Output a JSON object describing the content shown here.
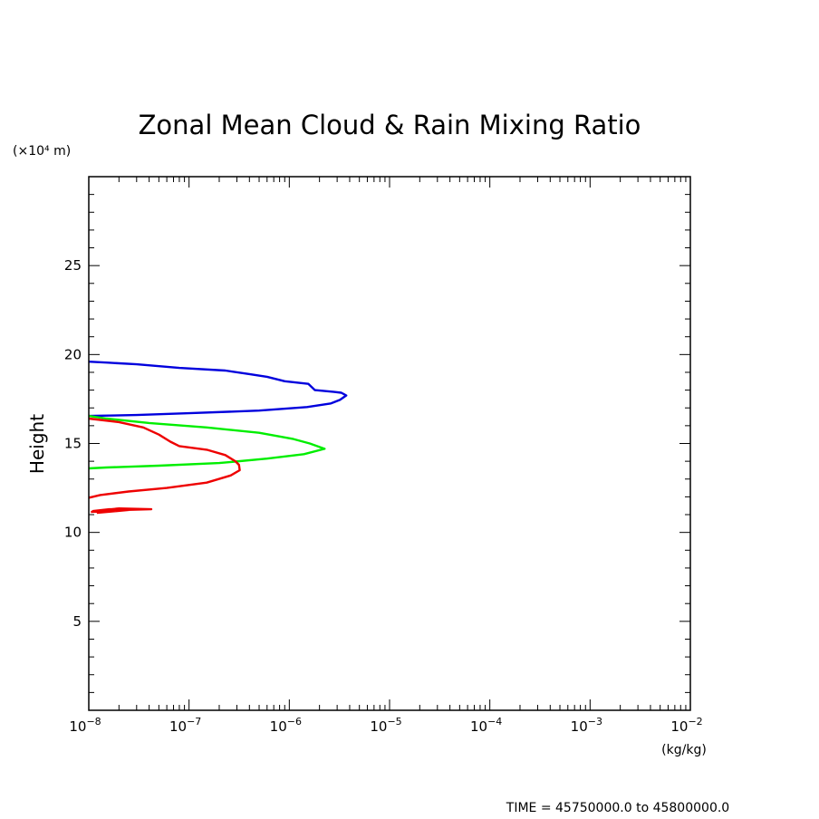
{
  "chart_data": {
    "type": "line",
    "title": "Zonal Mean Cloud & Rain Mixing Ratio",
    "ylabel": "Height",
    "yunit": "(×10⁴ m)",
    "xunit": "(kg/kg)",
    "xscale": "log",
    "xlim": [
      1e-08,
      0.01
    ],
    "ylim": [
      0,
      30
    ],
    "yticks": [
      5,
      10,
      15,
      20,
      25
    ],
    "ytick_labels": [
      "5",
      "10",
      "15",
      "20",
      "25"
    ],
    "xticks": [
      {
        "base": "10",
        "exp": "−8"
      },
      {
        "base": "10",
        "exp": "−7"
      },
      {
        "base": "10",
        "exp": "−6"
      },
      {
        "base": "10",
        "exp": "−5"
      },
      {
        "base": "10",
        "exp": "−4"
      },
      {
        "base": "10",
        "exp": "−3"
      },
      {
        "base": "10",
        "exp": "−2"
      }
    ],
    "series": [
      {
        "name": "blue",
        "color": "#0000dd",
        "points": [
          [
            1e-08,
            19.6
          ],
          [
            1.5e-08,
            19.55
          ],
          [
            3e-08,
            19.45
          ],
          [
            8e-08,
            19.25
          ],
          [
            2.3e-07,
            19.1
          ],
          [
            4e-07,
            18.9
          ],
          [
            6e-07,
            18.75
          ],
          [
            9e-07,
            18.5
          ],
          [
            1.55e-06,
            18.35
          ],
          [
            1.8e-06,
            18.0
          ],
          [
            2.8e-06,
            17.9
          ],
          [
            3.3e-06,
            17.85
          ],
          [
            3.7e-06,
            17.7
          ],
          [
            3.2e-06,
            17.45
          ],
          [
            2.6e-06,
            17.25
          ],
          [
            1.5e-06,
            17.05
          ],
          [
            5e-07,
            16.85
          ],
          [
            1e-07,
            16.7
          ],
          [
            3e-08,
            16.6
          ],
          [
            1e-08,
            16.55
          ]
        ]
      },
      {
        "name": "green",
        "color": "#00ee00",
        "points": [
          [
            1e-08,
            16.55
          ],
          [
            1.5e-08,
            16.4
          ],
          [
            4e-08,
            16.15
          ],
          [
            1.5e-07,
            15.9
          ],
          [
            5e-07,
            15.6
          ],
          [
            1.1e-06,
            15.25
          ],
          [
            1.6e-06,
            15.0
          ],
          [
            2.25e-06,
            14.7
          ],
          [
            1.4e-06,
            14.4
          ],
          [
            6e-07,
            14.15
          ],
          [
            2e-07,
            13.9
          ],
          [
            5e-08,
            13.75
          ],
          [
            1.5e-08,
            13.65
          ],
          [
            1e-08,
            13.6
          ]
        ]
      },
      {
        "name": "red",
        "color": "#ee0000",
        "points": [
          [
            1e-08,
            16.4
          ],
          [
            2e-08,
            16.2
          ],
          [
            3.5e-08,
            15.9
          ],
          [
            5e-08,
            15.5
          ],
          [
            6.5e-08,
            15.1
          ],
          [
            8e-08,
            14.85
          ],
          [
            1.5e-07,
            14.65
          ],
          [
            2.3e-07,
            14.35
          ],
          [
            2.9e-07,
            14.0
          ],
          [
            3.15e-07,
            13.8
          ],
          [
            3.2e-07,
            13.5
          ],
          [
            2.6e-07,
            13.2
          ],
          [
            1.5e-07,
            12.8
          ],
          [
            6e-08,
            12.5
          ],
          [
            2.5e-08,
            12.3
          ],
          [
            1.3e-08,
            12.1
          ],
          [
            1e-08,
            11.95
          ]
        ]
      },
      {
        "name": "red-lower",
        "color": "#ee0000",
        "points": [
          [
            1.05e-08,
            11.15
          ],
          [
            2e-08,
            11.25
          ],
          [
            4.2e-08,
            11.3
          ],
          [
            2e-08,
            11.35
          ],
          [
            1.1e-08,
            11.2
          ],
          [
            1.6e-08,
            11.3
          ],
          [
            3e-08,
            11.3
          ],
          [
            1.2e-08,
            11.1
          ]
        ]
      }
    ],
    "footer": "TIME = 45750000.0 to 45800000.0"
  }
}
